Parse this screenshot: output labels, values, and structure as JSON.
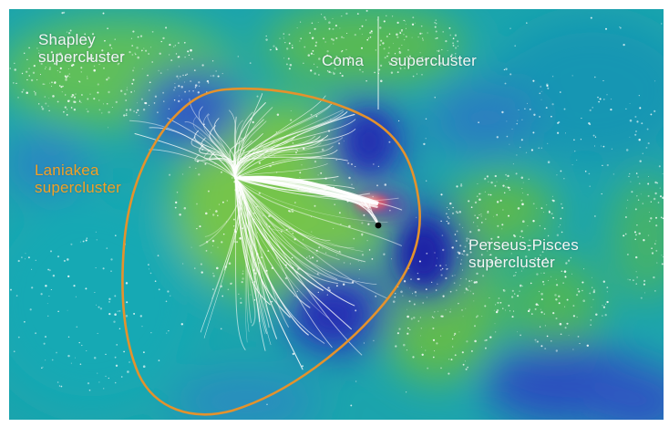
{
  "labels": {
    "shapley": {
      "line1": "Shapley",
      "line2": "supercluster"
    },
    "coma": {
      "word1": "Coma",
      "word2": "supercluster"
    },
    "laniakea": {
      "line1": "Laniakea",
      "line2": "supercluster"
    },
    "perseus": {
      "line1": "Perseus-Pisces",
      "line2": "supercluster"
    }
  },
  "colors": {
    "background": "#1aa7ae",
    "void": "#2a3fb8",
    "filament": "#72c24a",
    "boundary": "#e4922c",
    "label_white": "#f3f6f4",
    "label_orange": "#f2a126"
  }
}
